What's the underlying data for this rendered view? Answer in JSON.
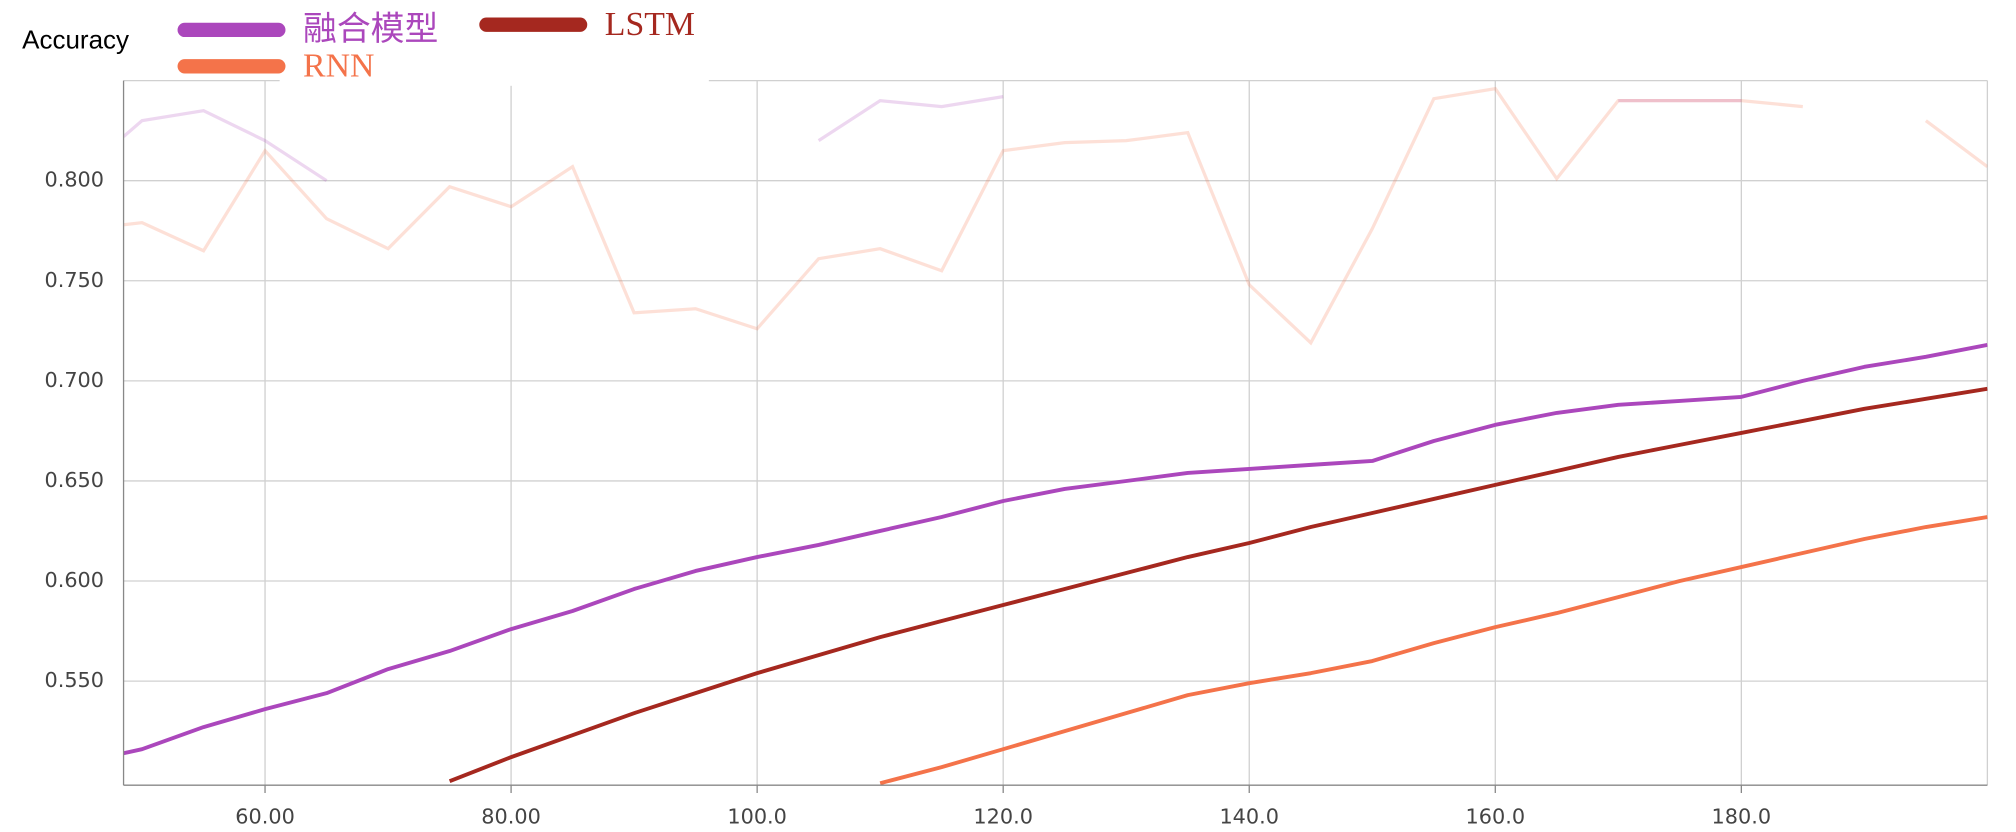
{
  "chart_data": {
    "type": "line",
    "y_label": "Accuracy",
    "xlim": [
      48.5,
      200
    ],
    "ylim": [
      0.498,
      0.85
    ],
    "xticks": [
      {
        "value": 60,
        "label": "60.00"
      },
      {
        "value": 80,
        "label": "80.00"
      },
      {
        "value": 100,
        "label": "100.0"
      },
      {
        "value": 120,
        "label": "120.0"
      },
      {
        "value": 140,
        "label": "140.0"
      },
      {
        "value": 160,
        "label": "160.0"
      },
      {
        "value": 180,
        "label": "180.0"
      }
    ],
    "yticks": [
      {
        "value": 0.55,
        "label": "0.550"
      },
      {
        "value": 0.6,
        "label": "0.600"
      },
      {
        "value": 0.65,
        "label": "0.650"
      },
      {
        "value": 0.7,
        "label": "0.700"
      },
      {
        "value": 0.75,
        "label": "0.750"
      },
      {
        "value": 0.8,
        "label": "0.800"
      }
    ],
    "grid": true,
    "raw_x": [
      48.5,
      50,
      55,
      60,
      65,
      70,
      75,
      80,
      85,
      90,
      95,
      100,
      105,
      110,
      115,
      120,
      125,
      130,
      135,
      140,
      145,
      150,
      155,
      160,
      165,
      170,
      175,
      180,
      185,
      190,
      195,
      200
    ],
    "series": [
      {
        "name": "融合模型",
        "color": "#ab47bc",
        "x": [
          48.5,
          50,
          55,
          60,
          65,
          70,
          75,
          80,
          85,
          90,
          95,
          100,
          105,
          110,
          115,
          120,
          125,
          130,
          135,
          140,
          145,
          150,
          155,
          160,
          165,
          170,
          175,
          180,
          185,
          190,
          195,
          200
        ],
        "values": [
          0.514,
          0.516,
          0.527,
          0.536,
          0.544,
          0.556,
          0.565,
          0.576,
          0.585,
          0.596,
          0.605,
          0.612,
          0.618,
          0.625,
          0.632,
          0.64,
          0.646,
          0.65,
          0.654,
          0.656,
          0.658,
          0.66,
          0.67,
          0.678,
          0.684,
          0.688,
          0.69,
          0.692,
          0.7,
          0.707,
          0.712,
          0.718
        ],
        "raw_values": [
          0.822,
          0.83,
          0.835,
          0.82,
          0.8,
          null,
          null,
          null,
          null,
          null,
          null,
          null,
          0.82,
          0.84,
          0.837,
          0.842,
          null,
          null,
          null,
          null,
          null,
          null,
          null,
          null,
          null,
          0.84,
          0.84,
          0.84,
          null,
          null,
          null,
          null
        ]
      },
      {
        "name": "RNN",
        "color": "#f4734a",
        "x": [
          110,
          115,
          120,
          125,
          130,
          135,
          140,
          145,
          150,
          155,
          160,
          165,
          170,
          175,
          180,
          185,
          190,
          195,
          200
        ],
        "values": [
          0.499,
          0.507,
          0.516,
          0.525,
          0.534,
          0.543,
          0.549,
          0.554,
          0.56,
          0.569,
          0.577,
          0.584,
          0.592,
          0.6,
          0.607,
          0.614,
          0.621,
          0.627,
          0.632
        ],
        "raw_values": [
          0.778,
          0.779,
          0.765,
          0.815,
          0.781,
          0.766,
          0.797,
          0.787,
          0.807,
          0.734,
          0.736,
          0.726,
          0.761,
          0.766,
          0.755,
          0.815,
          0.819,
          0.82,
          0.824,
          0.748,
          0.719,
          0.776,
          0.841,
          0.846,
          0.801,
          0.84,
          0.84,
          0.84,
          0.837,
          null,
          0.83,
          0.807
        ]
      },
      {
        "name": "LSTM",
        "color": "#a5281f",
        "x": [
          75,
          80,
          85,
          90,
          95,
          100,
          105,
          110,
          115,
          120,
          125,
          130,
          135,
          140,
          145,
          150,
          155,
          160,
          165,
          170,
          175,
          180,
          185,
          190,
          195,
          200
        ],
        "values": [
          0.5,
          0.512,
          0.523,
          0.534,
          0.544,
          0.554,
          0.563,
          0.572,
          0.58,
          0.588,
          0.596,
          0.604,
          0.612,
          0.619,
          0.627,
          0.634,
          0.641,
          0.648,
          0.655,
          0.662,
          0.668,
          0.674,
          0.68,
          0.686,
          0.691,
          0.696
        ]
      }
    ]
  }
}
